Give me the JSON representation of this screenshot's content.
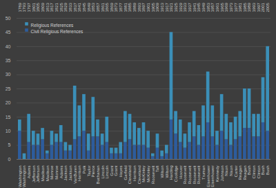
{
  "chart_data": {
    "type": "bar",
    "stacked": true,
    "grid": true,
    "legend": "top-left",
    "categories": [
      "Washington",
      "Washington",
      "Adams",
      "Jefferson",
      "Jefferson",
      "Madison",
      "Madison",
      "Monroe",
      "Monroe",
      "Adams",
      "Jackson",
      "Jackson",
      "VanBuren",
      "Harrison",
      "Polk",
      "Taylor",
      "Pierce",
      "Buchanan",
      "Lincoln",
      "Lincoln",
      "Grant",
      "Grant",
      "Hayes",
      "Garfield",
      "Cleveland",
      "Harrison",
      "Cleveland",
      "McKinley",
      "McKinley",
      "Roosevelt",
      "Taft",
      "Wilson",
      "Wilson",
      "Harding",
      "Coolidge",
      "Hoover",
      "Roosevelt",
      "Roosevelt",
      "Roosevelt",
      "Roosevelt",
      "Truman",
      "Eisenhower",
      "Eisenhower",
      "Kennedy",
      "Johnson",
      "Nixon",
      "Nixon",
      "Carter",
      "Reagan",
      "Reagan",
      "Bush",
      "Clinton",
      "Clinton",
      "Bush",
      "Bush"
    ],
    "years": [
      "1789",
      "1793",
      "1797",
      "1801",
      "1805",
      "1809",
      "1813",
      "1817",
      "1821",
      "1825",
      "1829",
      "1833",
      "1837",
      "1841",
      "1845",
      "1849",
      "1853",
      "1857",
      "1861",
      "1865",
      "1869",
      "1873",
      "1877",
      "1881",
      "1885",
      "1889",
      "1893",
      "1897",
      "1901",
      "1905",
      "1909",
      "1913",
      "1917",
      "1921",
      "1925",
      "1929",
      "1933",
      "1937",
      "1941",
      "1945",
      "1949",
      "1953",
      "1957",
      "1961",
      "1965",
      "1969",
      "1973",
      "1977",
      "1981",
      "1985",
      "1989",
      "1993",
      "1997",
      "2001",
      "2005"
    ],
    "series": [
      {
        "name": "Religious References",
        "color": "#3b8fb8",
        "values": [
          4,
          2,
          10,
          5,
          4,
          4,
          1,
          5,
          3,
          6,
          3,
          2,
          19,
          11,
          13,
          6,
          14,
          6,
          4,
          9,
          2,
          2,
          4,
          11,
          9,
          8,
          6,
          8,
          6,
          1,
          5,
          2,
          3,
          31,
          8,
          8,
          5,
          7,
          9,
          7,
          11,
          18,
          11,
          5,
          13,
          9,
          8,
          8,
          9,
          14,
          14,
          8,
          8,
          16,
          30
        ]
      },
      {
        "name": "Civil Religious References",
        "color": "#2d5c9c",
        "values": [
          10,
          0,
          6,
          5,
          5,
          7,
          2,
          5,
          6,
          6,
          3,
          3,
          7,
          8,
          10,
          3,
          8,
          8,
          5,
          6,
          2,
          2,
          2,
          6,
          7,
          5,
          5,
          5,
          4,
          1,
          4,
          1,
          2,
          14,
          9,
          6,
          4,
          6,
          8,
          5,
          8,
          13,
          8,
          5,
          10,
          7,
          5,
          7,
          8,
          11,
          11,
          8,
          8,
          13,
          10
        ]
      }
    ],
    "ylim": [
      0,
      50
    ],
    "yticks": [
      0,
      5,
      10,
      15,
      20,
      25,
      30,
      35,
      40,
      45,
      50
    ]
  }
}
